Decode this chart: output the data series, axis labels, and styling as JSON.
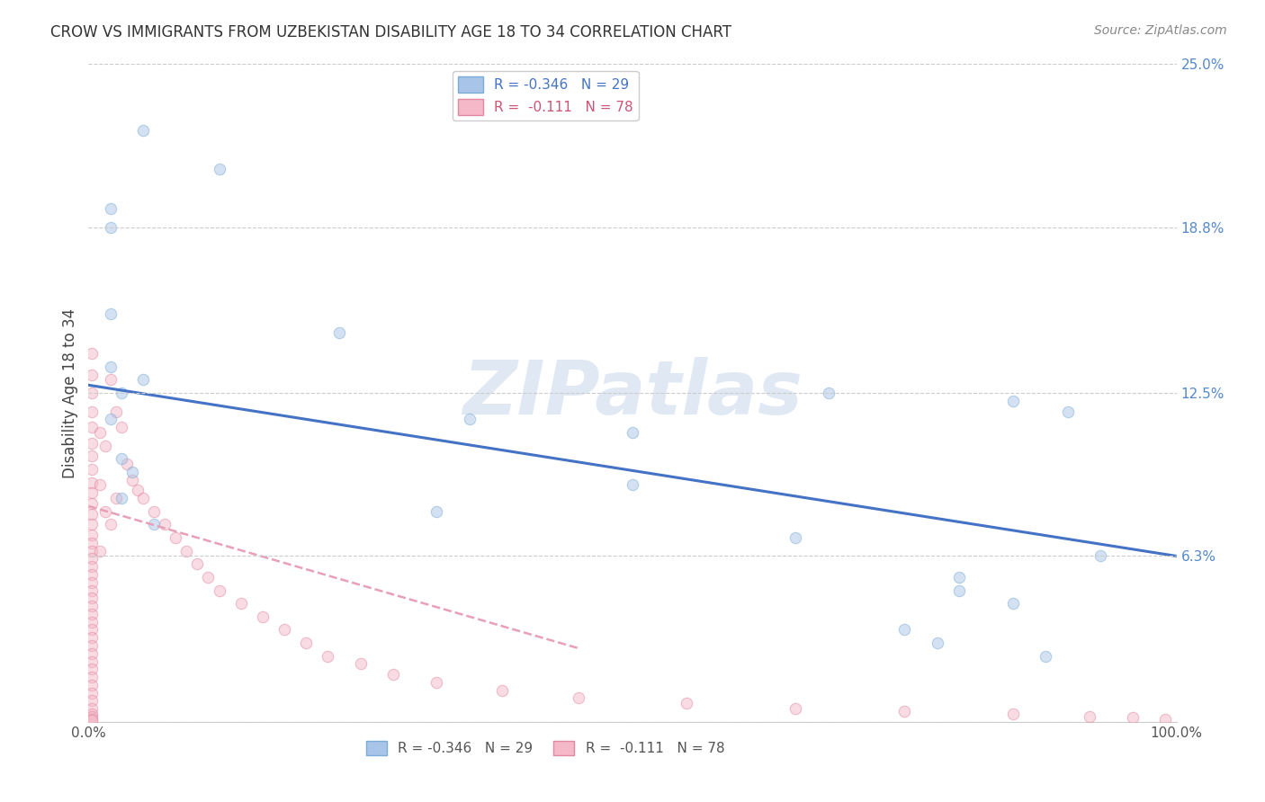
{
  "title": "CROW VS IMMIGRANTS FROM UZBEKISTAN DISABILITY AGE 18 TO 34 CORRELATION CHART",
  "source": "Source: ZipAtlas.com",
  "ylabel": "Disability Age 18 to 34",
  "xlim": [
    0,
    100
  ],
  "ylim": [
    0,
    25
  ],
  "ytick_vals": [
    0,
    6.3,
    12.5,
    18.8,
    25.0
  ],
  "ytick_labels": [
    "",
    "6.3%",
    "12.5%",
    "18.8%",
    "25.0%"
  ],
  "background_color": "#ffffff",
  "watermark": "ZIPatlas",
  "crow_color": "#a8c4e8",
  "crow_edge_color": "#7badd4",
  "uzbek_color": "#f4b8c8",
  "uzbek_edge_color": "#e088a0",
  "crow_line_color": "#4472c4",
  "uzbek_line_color": "#e8a0b8",
  "crow_scatter_x": [
    5,
    12,
    23,
    2,
    5,
    2,
    3,
    35,
    50,
    68,
    80,
    85,
    90,
    93,
    85,
    78,
    3,
    4,
    3,
    6,
    50,
    32,
    75,
    88,
    80,
    65,
    2,
    2,
    2
  ],
  "crow_scatter_y": [
    22.5,
    21.0,
    14.8,
    18.8,
    13.0,
    13.5,
    12.5,
    11.5,
    11.0,
    12.5,
    5.0,
    12.2,
    11.8,
    6.3,
    4.5,
    3.0,
    10.0,
    9.5,
    8.5,
    7.5,
    9.0,
    8.0,
    3.5,
    2.5,
    5.5,
    7.0,
    11.5,
    15.5,
    19.5
  ],
  "uzbek_scatter_x": [
    0.3,
    0.3,
    0.3,
    0.3,
    0.3,
    0.3,
    0.3,
    0.3,
    0.3,
    0.3,
    0.3,
    0.3,
    0.3,
    0.3,
    0.3,
    0.3,
    0.3,
    0.3,
    0.3,
    0.3,
    0.3,
    0.3,
    0.3,
    0.3,
    0.3,
    0.3,
    0.3,
    0.3,
    0.3,
    0.3,
    0.3,
    0.3,
    0.3,
    0.3,
    0.3,
    0.3,
    0.3,
    0.3,
    0.3,
    0.3,
    1.0,
    1.0,
    1.0,
    1.5,
    1.5,
    2.0,
    2.0,
    2.5,
    2.5,
    3.0,
    3.5,
    4.0,
    4.5,
    5.0,
    6.0,
    7.0,
    8.0,
    9.0,
    10.0,
    11.0,
    12.0,
    14.0,
    16.0,
    18.0,
    20.0,
    22.0,
    25.0,
    28.0,
    32.0,
    38.0,
    45.0,
    55.0,
    65.0,
    75.0,
    85.0,
    92.0,
    96.0,
    99.0
  ],
  "uzbek_scatter_y": [
    14.0,
    13.2,
    12.5,
    11.8,
    11.2,
    10.6,
    10.1,
    9.6,
    9.1,
    8.7,
    8.3,
    7.9,
    7.5,
    7.1,
    6.8,
    6.5,
    6.2,
    5.9,
    5.6,
    5.3,
    5.0,
    4.7,
    4.4,
    4.1,
    3.8,
    3.5,
    3.2,
    2.9,
    2.6,
    2.3,
    2.0,
    1.7,
    1.4,
    1.1,
    0.8,
    0.5,
    0.3,
    0.2,
    0.1,
    0.05,
    11.0,
    9.0,
    6.5,
    10.5,
    8.0,
    13.0,
    7.5,
    11.8,
    8.5,
    11.2,
    9.8,
    9.2,
    8.8,
    8.5,
    8.0,
    7.5,
    7.0,
    6.5,
    6.0,
    5.5,
    5.0,
    4.5,
    4.0,
    3.5,
    3.0,
    2.5,
    2.2,
    1.8,
    1.5,
    1.2,
    0.9,
    0.7,
    0.5,
    0.4,
    0.3,
    0.2,
    0.15,
    0.1
  ],
  "crow_trendline_x": [
    0,
    100
  ],
  "crow_trendline_y": [
    12.8,
    6.3
  ],
  "uzbek_trendline_x": [
    0,
    45
  ],
  "uzbek_trendline_y": [
    8.2,
    2.8
  ],
  "legend_label_crow": "R = -0.346   N = 29",
  "legend_label_uzbek": "R =  -0.111   N = 78",
  "legend_text_crow": "#4472c4",
  "legend_text_uzbek": "#cc5577",
  "marker_size": 80,
  "marker_alpha": 0.5
}
